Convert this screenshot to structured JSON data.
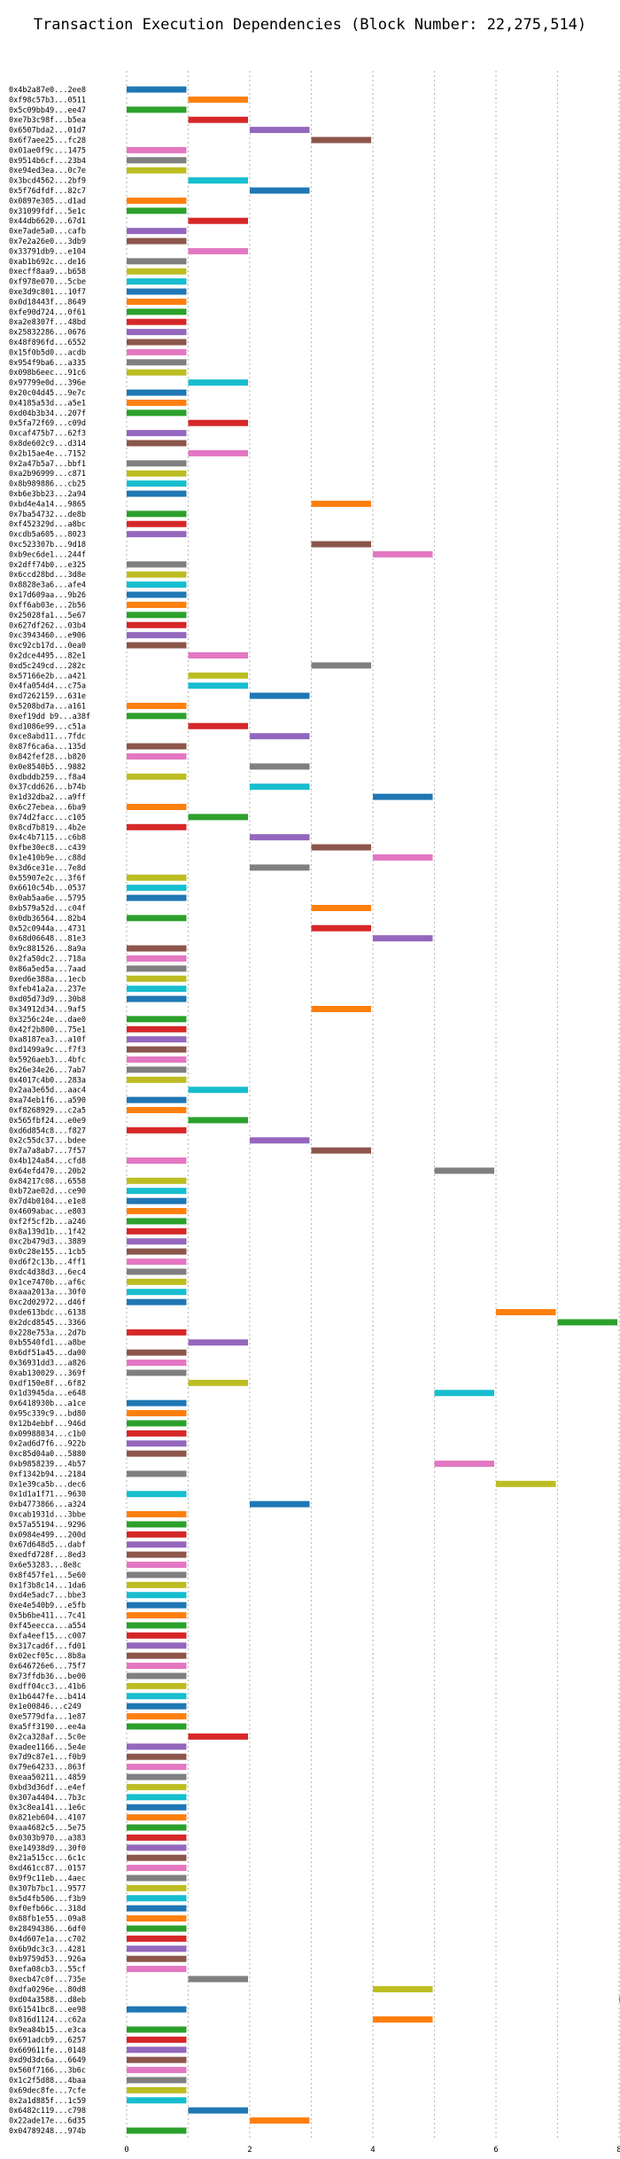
{
  "chart_data": {
    "type": "bar",
    "orientation": "horizontal",
    "title": "Transaction Execution Dependencies (Block Number: 22,275,514)",
    "xlabel": "",
    "ylabel": "",
    "xlim": [
      0,
      10
    ],
    "xticks": [
      0,
      2,
      4,
      6,
      8
    ],
    "grid": true,
    "palette": [
      "#1f77b4",
      "#ff7f0e",
      "#2ca02c",
      "#d62728",
      "#9467bd",
      "#8c564b",
      "#e377c2",
      "#7f7f7f",
      "#bcbd22",
      "#17becf"
    ],
    "transactions": [
      {
        "label": "0x4b2a87e0...2ee8",
        "start": 0,
        "end": 1
      },
      {
        "label": "0xf98c57b3...0511",
        "start": 1,
        "end": 2
      },
      {
        "label": "0x5c09bb49...ee47",
        "start": 0,
        "end": 1
      },
      {
        "label": "0xe7b3c98f...b5ea",
        "start": 1,
        "end": 2
      },
      {
        "label": "0x6507bda2...01d7",
        "start": 2,
        "end": 3
      },
      {
        "label": "0x6f7aee25...fc28",
        "start": 3,
        "end": 4
      },
      {
        "label": "0x01ae0f9c...1475",
        "start": 0,
        "end": 1
      },
      {
        "label": "0x9514b6cf...23b4",
        "start": 0,
        "end": 1
      },
      {
        "label": "0xe94ed3ea...0c7e",
        "start": 0,
        "end": 1
      },
      {
        "label": "0x3bcd4562...2bf9",
        "start": 1,
        "end": 2
      },
      {
        "label": "0x5f76dfdf...82c7",
        "start": 2,
        "end": 3
      },
      {
        "label": "0x0897e305...d1ad",
        "start": 0,
        "end": 1
      },
      {
        "label": "0x31099fdf...5e1c",
        "start": 0,
        "end": 1
      },
      {
        "label": "0x44db6620...67d1",
        "start": 1,
        "end": 2
      },
      {
        "label": "0xe7ade5a0...cafb",
        "start": 0,
        "end": 1
      },
      {
        "label": "0x7e2a26e0...3db9",
        "start": 0,
        "end": 1
      },
      {
        "label": "0x33791db9...e104",
        "start": 1,
        "end": 2
      },
      {
        "label": "0xab1b692c...de16",
        "start": 0,
        "end": 1
      },
      {
        "label": "0xecff8aa9...b658",
        "start": 0,
        "end": 1
      },
      {
        "label": "0xf978e070...5cbe",
        "start": 0,
        "end": 1
      },
      {
        "label": "0xe3d9c801...10f7",
        "start": 0,
        "end": 1
      },
      {
        "label": "0x0d18443f...8649",
        "start": 0,
        "end": 1
      },
      {
        "label": "0xfe90d724...0f61",
        "start": 0,
        "end": 1
      },
      {
        "label": "0xa2e8307f...48bd",
        "start": 0,
        "end": 1
      },
      {
        "label": "0x25832286...0676",
        "start": 0,
        "end": 1
      },
      {
        "label": "0x48f896fd...6552",
        "start": 0,
        "end": 1
      },
      {
        "label": "0x15f0b5d0...acdb",
        "start": 0,
        "end": 1
      },
      {
        "label": "0x954f9ba6...a335",
        "start": 0,
        "end": 1
      },
      {
        "label": "0x098b6eec...91c6",
        "start": 0,
        "end": 1
      },
      {
        "label": "0x97799e0d...396e",
        "start": 1,
        "end": 2
      },
      {
        "label": "0x20c04d45...9e7c",
        "start": 0,
        "end": 1
      },
      {
        "label": "0x4185a53d...a5e1",
        "start": 0,
        "end": 1
      },
      {
        "label": "0xd04b3b34...207f",
        "start": 0,
        "end": 1
      },
      {
        "label": "0x5fa72f69...c09d",
        "start": 1,
        "end": 2
      },
      {
        "label": "0xcaf475b7...62f3",
        "start": 0,
        "end": 1
      },
      {
        "label": "0x8de602c9...d314",
        "start": 0,
        "end": 1
      },
      {
        "label": "0x2b15ae4e...7152",
        "start": 1,
        "end": 2
      },
      {
        "label": "0x2a47b5a7...bbf1",
        "start": 0,
        "end": 1
      },
      {
        "label": "0xa2b96999...c871",
        "start": 0,
        "end": 1
      },
      {
        "label": "0x8b989886...cb25",
        "start": 0,
        "end": 1
      },
      {
        "label": "0xb6e3bb23...2a94",
        "start": 0,
        "end": 1
      },
      {
        "label": "0xbd4e4a14...9865",
        "start": 3,
        "end": 4
      },
      {
        "label": "0x7ba54732...de8b",
        "start": 0,
        "end": 1
      },
      {
        "label": "0xf452329d...a8bc",
        "start": 0,
        "end": 1
      },
      {
        "label": "0xcdb5a605...8023",
        "start": 0,
        "end": 1
      },
      {
        "label": "0xc523307b...9d18",
        "start": 3,
        "end": 4
      },
      {
        "label": "0xb9ec6de1...244f",
        "start": 4,
        "end": 5
      },
      {
        "label": "0x2dff74b0...e325",
        "start": 0,
        "end": 1
      },
      {
        "label": "0x6ccd28bd...3d8e",
        "start": 0,
        "end": 1
      },
      {
        "label": "0x8828e3a6...afe4",
        "start": 0,
        "end": 1
      },
      {
        "label": "0x17d609aa...9b26",
        "start": 0,
        "end": 1
      },
      {
        "label": "0xff6ab03e...2b56",
        "start": 0,
        "end": 1
      },
      {
        "label": "0x25028fa1...5e67",
        "start": 0,
        "end": 1
      },
      {
        "label": "0x627df262...03b4",
        "start": 0,
        "end": 1
      },
      {
        "label": "0xc3943460...e906",
        "start": 0,
        "end": 1
      },
      {
        "label": "0xc92cb17d...0ea0",
        "start": 0,
        "end": 1
      },
      {
        "label": "0x2dce4495...82e1",
        "start": 1,
        "end": 2
      },
      {
        "label": "0xd5c249cd...282c",
        "start": 3,
        "end": 4
      },
      {
        "label": "0x57166e2b...a421",
        "start": 1,
        "end": 2
      },
      {
        "label": "0x4fa054d4...c75a",
        "start": 1,
        "end": 2
      },
      {
        "label": "0xd7262159...631e",
        "start": 2,
        "end": 3
      },
      {
        "label": "0x5208bd7a...a161",
        "start": 0,
        "end": 1
      },
      {
        "label": "0xef19dd b9...a38f",
        "start": 0,
        "end": 1
      },
      {
        "label": "0xd1086e99...c51a",
        "start": 1,
        "end": 2
      },
      {
        "label": "0xce8abd11...7fdc",
        "start": 2,
        "end": 3
      },
      {
        "label": "0x87f6ca6a...135d",
        "start": 0,
        "end": 1
      },
      {
        "label": "0x842fef28...b820",
        "start": 0,
        "end": 1
      },
      {
        "label": "0x0e8540b5...9882",
        "start": 2,
        "end": 3
      },
      {
        "label": "0xdbddb259...f8a4",
        "start": 0,
        "end": 1
      },
      {
        "label": "0x37cdd626...b74b",
        "start": 2,
        "end": 3
      },
      {
        "label": "0x1d32dba2...a9ff",
        "start": 4,
        "end": 5
      },
      {
        "label": "0x6c27ebea...6ba9",
        "start": 0,
        "end": 1
      },
      {
        "label": "0x74d2facc...c105",
        "start": 1,
        "end": 2
      },
      {
        "label": "0x8cd7b819...4b2e",
        "start": 0,
        "end": 1
      },
      {
        "label": "0x4c4b7115...c6b8",
        "start": 2,
        "end": 3
      },
      {
        "label": "0xfbe30ec8...c439",
        "start": 3,
        "end": 4
      },
      {
        "label": "0x1e410b9e...c88d",
        "start": 4,
        "end": 5
      },
      {
        "label": "0x3d6ce31e...7e8d",
        "start": 2,
        "end": 3
      },
      {
        "label": "0x55907e2c...3f6f",
        "start": 0,
        "end": 1
      },
      {
        "label": "0x6610c54b...0537",
        "start": 0,
        "end": 1
      },
      {
        "label": "0x0ab5aa6e...5795",
        "start": 0,
        "end": 1
      },
      {
        "label": "0xb579a52d...c04f",
        "start": 3,
        "end": 4
      },
      {
        "label": "0x0db36564...82b4",
        "start": 0,
        "end": 1
      },
      {
        "label": "0x52c0944a...4731",
        "start": 3,
        "end": 4
      },
      {
        "label": "0x68d06648...81e3",
        "start": 4,
        "end": 5
      },
      {
        "label": "0x9c881526...8a9a",
        "start": 0,
        "end": 1
      },
      {
        "label": "0x2fa50dc2...718a",
        "start": 0,
        "end": 1
      },
      {
        "label": "0x86a5ed5a...7aad",
        "start": 0,
        "end": 1
      },
      {
        "label": "0xed6e388a...1ecb",
        "start": 0,
        "end": 1
      },
      {
        "label": "0xfeb41a2a...237e",
        "start": 0,
        "end": 1
      },
      {
        "label": "0xd05d73d9...30b8",
        "start": 0,
        "end": 1
      },
      {
        "label": "0x34912d34...9af5",
        "start": 3,
        "end": 4
      },
      {
        "label": "0x3256c24e...dae0",
        "start": 0,
        "end": 1
      },
      {
        "label": "0x42f2b800...75e1",
        "start": 0,
        "end": 1
      },
      {
        "label": "0xa8187ea3...a10f",
        "start": 0,
        "end": 1
      },
      {
        "label": "0xd1499a9c...f7f3",
        "start": 0,
        "end": 1
      },
      {
        "label": "0x5926aeb3...4bfc",
        "start": 0,
        "end": 1
      },
      {
        "label": "0x26e34e26...7ab7",
        "start": 0,
        "end": 1
      },
      {
        "label": "0x4017c4b0...283a",
        "start": 0,
        "end": 1
      },
      {
        "label": "0x2aa3e65d...aac4",
        "start": 1,
        "end": 2
      },
      {
        "label": "0xa74eb1f6...a590",
        "start": 0,
        "end": 1
      },
      {
        "label": "0xf8268929...c2a5",
        "start": 0,
        "end": 1
      },
      {
        "label": "0x565fbf24...e0e9",
        "start": 1,
        "end": 2
      },
      {
        "label": "0xd6d854c8...f827",
        "start": 0,
        "end": 1
      },
      {
        "label": "0x2c55dc37...bdee",
        "start": 2,
        "end": 3
      },
      {
        "label": "0x7a7a8ab7...7f57",
        "start": 3,
        "end": 4
      },
      {
        "label": "0x4b124a84...cfd8",
        "start": 0,
        "end": 1
      },
      {
        "label": "0x64efd470...20b2",
        "start": 5,
        "end": 6
      },
      {
        "label": "0x84217c08...6558",
        "start": 0,
        "end": 1
      },
      {
        "label": "0xb72ae02d...ce90",
        "start": 0,
        "end": 1
      },
      {
        "label": "0x7d4b0104...e1e8",
        "start": 0,
        "end": 1
      },
      {
        "label": "0x4609abac...e803",
        "start": 0,
        "end": 1
      },
      {
        "label": "0xf2f5cf2b...a246",
        "start": 0,
        "end": 1
      },
      {
        "label": "0x8a139d1b...1f42",
        "start": 0,
        "end": 1
      },
      {
        "label": "0xc2b479d3...3889",
        "start": 0,
        "end": 1
      },
      {
        "label": "0x0c28e155...1cb5",
        "start": 0,
        "end": 1
      },
      {
        "label": "0xd6f2c13b...4ff1",
        "start": 0,
        "end": 1
      },
      {
        "label": "0xdc4d38d3...6ec4",
        "start": 0,
        "end": 1
      },
      {
        "label": "0x1ce7470b...af6c",
        "start": 0,
        "end": 1
      },
      {
        "label": "0xaaa2013a...30f0",
        "start": 0,
        "end": 1
      },
      {
        "label": "0xc2d02972...d46f",
        "start": 0,
        "end": 1
      },
      {
        "label": "0xde613bdc...6138",
        "start": 6,
        "end": 7
      },
      {
        "label": "0x2dcd8545...3366",
        "start": 7,
        "end": 8
      },
      {
        "label": "0x228e753a...2d7b",
        "start": 0,
        "end": 1
      },
      {
        "label": "0xb5540fd1...a8be",
        "start": 1,
        "end": 2
      },
      {
        "label": "0x6df51a45...da00",
        "start": 0,
        "end": 1
      },
      {
        "label": "0x36931dd3...a826",
        "start": 0,
        "end": 1
      },
      {
        "label": "0xab130029...369f",
        "start": 0,
        "end": 1
      },
      {
        "label": "0xdf150e8f...6f82",
        "start": 1,
        "end": 2
      },
      {
        "label": "0x1d3945da...e648",
        "start": 5,
        "end": 6
      },
      {
        "label": "0x6418930b...a1ce",
        "start": 0,
        "end": 1
      },
      {
        "label": "0x95c339c9...bd80",
        "start": 0,
        "end": 1
      },
      {
        "label": "0x12b4ebbf...946d",
        "start": 0,
        "end": 1
      },
      {
        "label": "0x09988034...c1b0",
        "start": 0,
        "end": 1
      },
      {
        "label": "0x2ad6d7f6...922b",
        "start": 0,
        "end": 1
      },
      {
        "label": "0xc85d04a0...5880",
        "start": 0,
        "end": 1
      },
      {
        "label": "0xb9858239...4b57",
        "start": 5,
        "end": 6
      },
      {
        "label": "0xf1342b94...2184",
        "start": 0,
        "end": 1
      },
      {
        "label": "0x1e39ca5b...dec6",
        "start": 6,
        "end": 7
      },
      {
        "label": "0x1d1a1f71...9630",
        "start": 0,
        "end": 1
      },
      {
        "label": "0xb4773866...a324",
        "start": 2,
        "end": 3
      },
      {
        "label": "0xcab1931d...3bbe",
        "start": 0,
        "end": 1
      },
      {
        "label": "0x57a55194...9296",
        "start": 0,
        "end": 1
      },
      {
        "label": "0x0984e499...200d",
        "start": 0,
        "end": 1
      },
      {
        "label": "0x67d648d5...dabf",
        "start": 0,
        "end": 1
      },
      {
        "label": "0xedfd728f...8ed3",
        "start": 0,
        "end": 1
      },
      {
        "label": "0x6e53283...8e8c",
        "start": 0,
        "end": 1
      },
      {
        "label": "0x8f457fe1...5e60",
        "start": 0,
        "end": 1
      },
      {
        "label": "0x1f3b8c14...1da6",
        "start": 0,
        "end": 1
      },
      {
        "label": "0xd4e5adc7...bbe3",
        "start": 0,
        "end": 1
      },
      {
        "label": "0xe4e540b9...e5fb",
        "start": 0,
        "end": 1
      },
      {
        "label": "0x5b6be411...7c41",
        "start": 0,
        "end": 1
      },
      {
        "label": "0xf45eecca...a554",
        "start": 0,
        "end": 1
      },
      {
        "label": "0xfa4eef15...c007",
        "start": 0,
        "end": 1
      },
      {
        "label": "0x317cad6f...fd01",
        "start": 0,
        "end": 1
      },
      {
        "label": "0x02ecf05c...8b8a",
        "start": 0,
        "end": 1
      },
      {
        "label": "0x646726e6...75f7",
        "start": 0,
        "end": 1
      },
      {
        "label": "0x73ffdb36...be00",
        "start": 0,
        "end": 1
      },
      {
        "label": "0xdff04cc3...41b6",
        "start": 0,
        "end": 1
      },
      {
        "label": "0x1b6447fe...b414",
        "start": 0,
        "end": 1
      },
      {
        "label": "0x1e00846...c249",
        "start": 0,
        "end": 1
      },
      {
        "label": "0xe5779dfa...1e87",
        "start": 0,
        "end": 1
      },
      {
        "label": "0xa5ff3190...ee4a",
        "start": 0,
        "end": 1
      },
      {
        "label": "0x2ca328af...5c0e",
        "start": 1,
        "end": 2
      },
      {
        "label": "0xadee1166...5e4e",
        "start": 0,
        "end": 1
      },
      {
        "label": "0x7d9c87e1...f0b9",
        "start": 0,
        "end": 1
      },
      {
        "label": "0x79e64233...863f",
        "start": 0,
        "end": 1
      },
      {
        "label": "0xeaa50211...4859",
        "start": 0,
        "end": 1
      },
      {
        "label": "0xbd3d36df...e4ef",
        "start": 0,
        "end": 1
      },
      {
        "label": "0x307a4404...7b3c",
        "start": 0,
        "end": 1
      },
      {
        "label": "0x3c8ea141...1e6c",
        "start": 0,
        "end": 1
      },
      {
        "label": "0x821eb604...4107",
        "start": 0,
        "end": 1
      },
      {
        "label": "0xaa4682c5...5e75",
        "start": 0,
        "end": 1
      },
      {
        "label": "0x0303b970...a383",
        "start": 0,
        "end": 1
      },
      {
        "label": "0xe14938d9...30f0",
        "start": 0,
        "end": 1
      },
      {
        "label": "0x21a515cc...6c1c",
        "start": 0,
        "end": 1
      },
      {
        "label": "0xd461cc87...0157",
        "start": 0,
        "end": 1
      },
      {
        "label": "0x9f9c11eb...4aec",
        "start": 0,
        "end": 1
      },
      {
        "label": "0x307b7bc1...9577",
        "start": 0,
        "end": 1
      },
      {
        "label": "0x5d4fb506...f3b9",
        "start": 0,
        "end": 1
      },
      {
        "label": "0xf0efb66c...318d",
        "start": 0,
        "end": 1
      },
      {
        "label": "0x88fb1e55...09a8",
        "start": 0,
        "end": 1
      },
      {
        "label": "0x28494386...6df0",
        "start": 0,
        "end": 1
      },
      {
        "label": "0x4d607e1a...c702",
        "start": 0,
        "end": 1
      },
      {
        "label": "0x6b9dc3c3...4281",
        "start": 0,
        "end": 1
      },
      {
        "label": "0xb9759d53...926a",
        "start": 0,
        "end": 1
      },
      {
        "label": "0xefa08cb3...55cf",
        "start": 0,
        "end": 1
      },
      {
        "label": "0xecb47c0f...735e",
        "start": 1,
        "end": 2
      },
      {
        "label": "0xdfa0296e...80d8",
        "start": 4,
        "end": 5
      },
      {
        "label": "0xd04a3588...d8eb",
        "start": 8,
        "end": 9
      },
      {
        "label": "0x61541bc8...ee98",
        "start": 0,
        "end": 1
      },
      {
        "label": "0x816d1124...c62a",
        "start": 4,
        "end": 5
      },
      {
        "label": "0x9ea84b15...e3ca",
        "start": 0,
        "end": 1
      },
      {
        "label": "0x691adcb9...6257",
        "start": 0,
        "end": 1
      },
      {
        "label": "0x669611fe...0148",
        "start": 0,
        "end": 1
      },
      {
        "label": "0xd9d3dc6a...6649",
        "start": 0,
        "end": 1
      },
      {
        "label": "0x560f7166...3b6c",
        "start": 0,
        "end": 1
      },
      {
        "label": "0x1c2f5d88...4baa",
        "start": 0,
        "end": 1
      },
      {
        "label": "0x69dec8fe...7cfe",
        "start": 0,
        "end": 1
      },
      {
        "label": "0x2a1d885f...1c59",
        "start": 0,
        "end": 1
      },
      {
        "label": "0x6482c119...c798",
        "start": 1,
        "end": 2
      },
      {
        "label": "0x22ade17e...6d35",
        "start": 2,
        "end": 3
      },
      {
        "label": "0x04789248...974b",
        "start": 0,
        "end": 1
      }
    ]
  }
}
